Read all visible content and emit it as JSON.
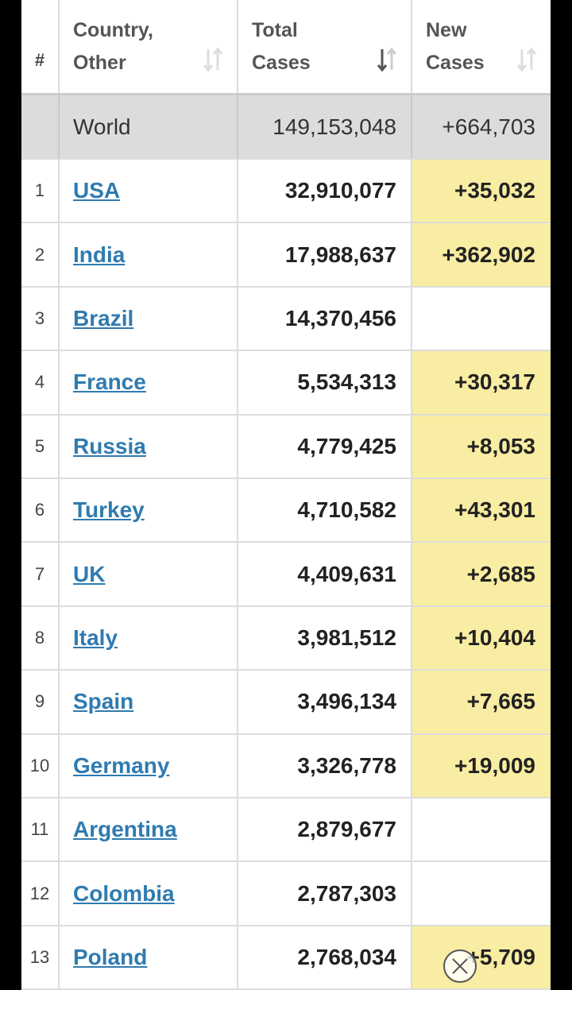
{
  "header": {
    "rank": "#",
    "country": "Country, Other",
    "total": "Total Cases",
    "new": "New Cases"
  },
  "world": {
    "country": "World",
    "total": "149,153,048",
    "new": "+664,703"
  },
  "table": {
    "rows": [
      {
        "rank": "1",
        "country": "USA",
        "total": "32,910,077",
        "new": "+35,032"
      },
      {
        "rank": "2",
        "country": "India",
        "total": "17,988,637",
        "new": "+362,902"
      },
      {
        "rank": "3",
        "country": "Brazil",
        "total": "14,370,456",
        "new": null
      },
      {
        "rank": "4",
        "country": "France",
        "total": "5,534,313",
        "new": "+30,317"
      },
      {
        "rank": "5",
        "country": "Russia",
        "total": "4,779,425",
        "new": "+8,053"
      },
      {
        "rank": "6",
        "country": "Turkey",
        "total": "4,710,582",
        "new": "+43,301"
      },
      {
        "rank": "7",
        "country": "UK",
        "total": "4,409,631",
        "new": "+2,685"
      },
      {
        "rank": "8",
        "country": "Italy",
        "total": "3,981,512",
        "new": "+10,404"
      },
      {
        "rank": "9",
        "country": "Spain",
        "total": "3,496,134",
        "new": "+7,665"
      },
      {
        "rank": "10",
        "country": "Germany",
        "total": "3,326,778",
        "new": "+19,009"
      },
      {
        "rank": "11",
        "country": "Argentina",
        "total": "2,879,677",
        "new": null
      },
      {
        "rank": "12",
        "country": "Colombia",
        "total": "2,787,303",
        "new": null
      },
      {
        "rank": "13",
        "country": "Poland",
        "total": "2,768,034",
        "new": "+5,709"
      }
    ]
  }
}
